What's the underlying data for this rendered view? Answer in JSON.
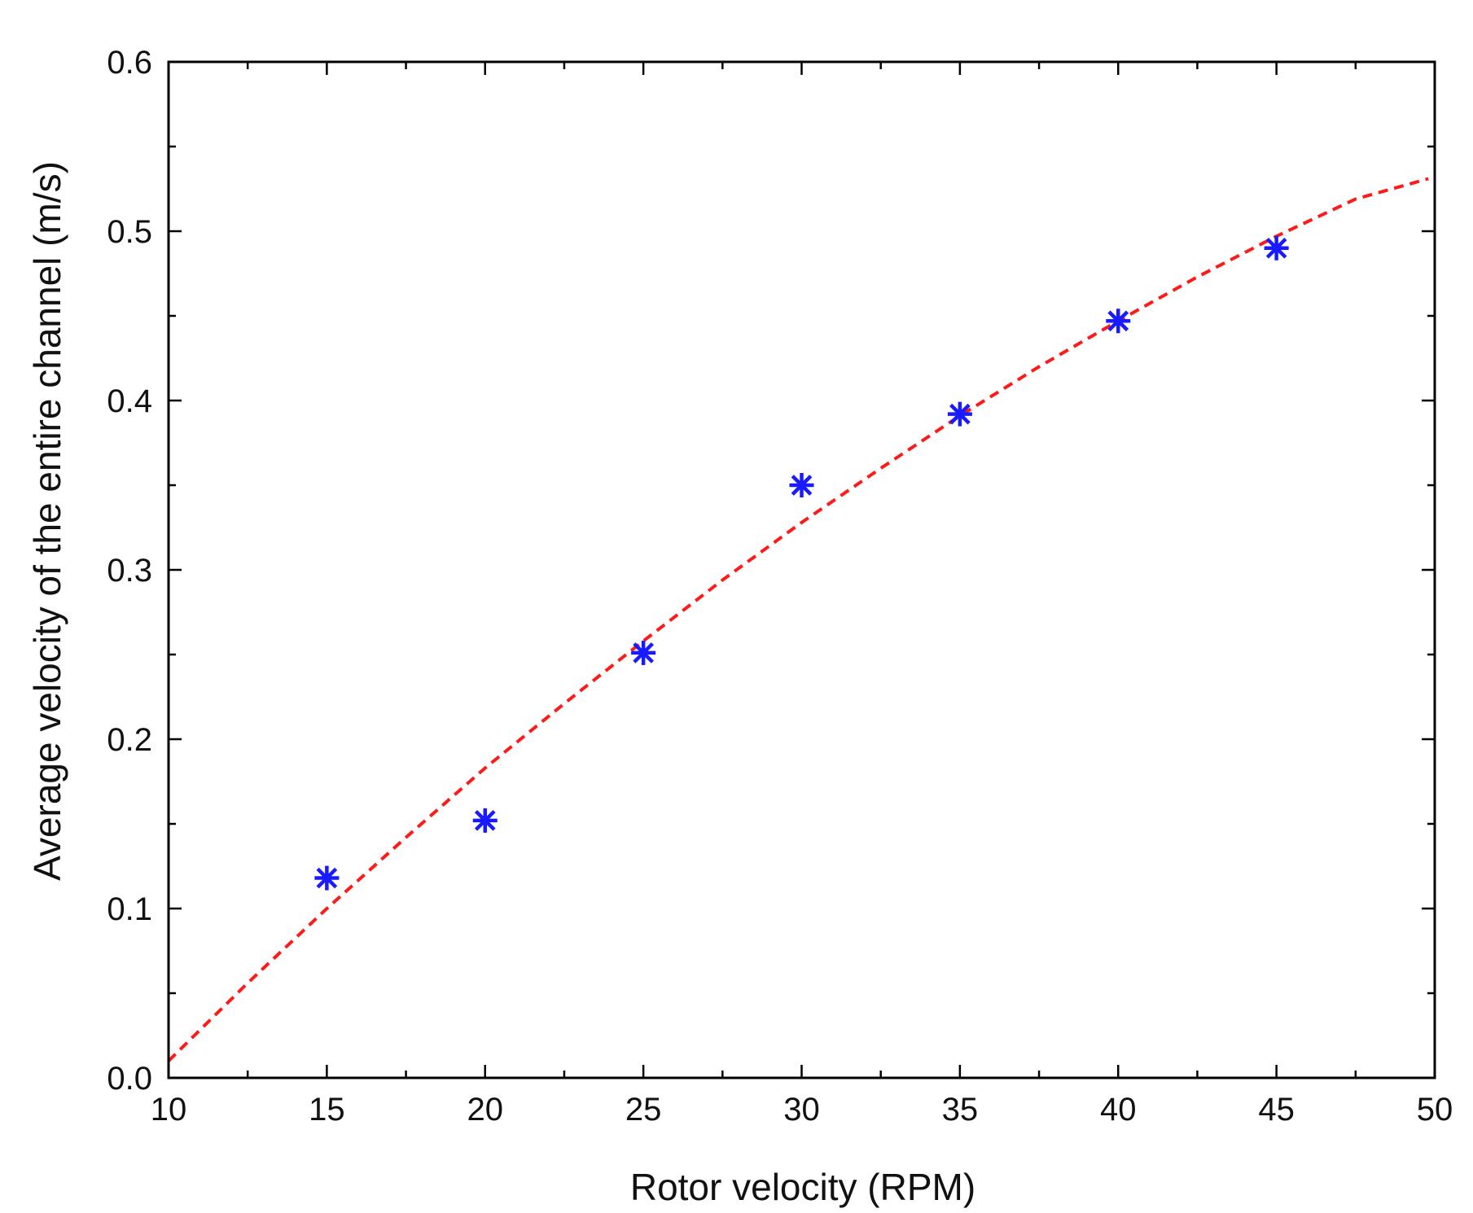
{
  "chart_data": {
    "type": "scatter",
    "title": "",
    "xlabel": "Rotor velocity (RPM)",
    "ylabel": "Average velocity of the entire channel (m/s)",
    "xlim": [
      10,
      50
    ],
    "ylim": [
      0.0,
      0.6
    ],
    "x_ticks": [
      10,
      15,
      20,
      25,
      30,
      35,
      40,
      45,
      50
    ],
    "x_tick_labels": [
      "10",
      "15",
      "20",
      "25",
      "30",
      "35",
      "40",
      "45",
      "50"
    ],
    "y_ticks": [
      0.0,
      0.1,
      0.2,
      0.3,
      0.4,
      0.5,
      0.6
    ],
    "y_tick_labels": [
      "0.0",
      "0.1",
      "0.2",
      "0.3",
      "0.4",
      "0.5",
      "0.6"
    ],
    "x_minor_step": 2.5,
    "y_minor_step": 0.05,
    "grid": false,
    "series": [
      {
        "kind": "markers",
        "marker": "asterisk",
        "color": "#1a1aff",
        "x": [
          15,
          20,
          25,
          30,
          35,
          40,
          45
        ],
        "y": [
          0.118,
          0.152,
          0.251,
          0.35,
          0.392,
          0.447,
          0.49
        ]
      },
      {
        "kind": "fit-line",
        "style": "dashed",
        "color": "#ff1a1a",
        "x": [
          10,
          12.5,
          15,
          17.5,
          20,
          22.5,
          25,
          27.5,
          30,
          32.5,
          35,
          37.5,
          40,
          42.5,
          45,
          47.5,
          49.8
        ],
        "y": [
          0.01,
          0.056,
          0.1,
          0.142,
          0.183,
          0.221,
          0.258,
          0.294,
          0.328,
          0.36,
          0.391,
          0.42,
          0.447,
          0.473,
          0.497,
          0.519,
          0.531
        ]
      }
    ]
  }
}
